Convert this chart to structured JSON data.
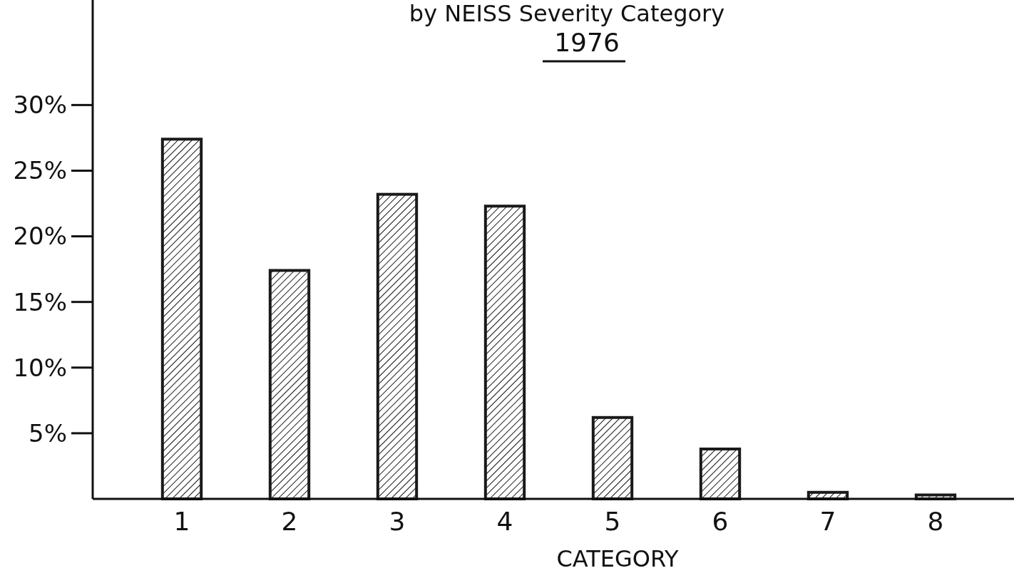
{
  "chart_data": {
    "type": "bar",
    "title": "by NEISS Severity Category",
    "subtitle": "1976",
    "xlabel": "CATEGORY",
    "categories": [
      "1",
      "2",
      "3",
      "4",
      "5",
      "6",
      "7",
      "8"
    ],
    "values": [
      27.4,
      17.4,
      23.2,
      22.3,
      6.2,
      3.8,
      0.5,
      0.3
    ],
    "color": "#1a1a1a",
    "ylim": [
      0,
      38
    ],
    "yticks": [
      {
        "value": 5,
        "label": "5%"
      },
      {
        "value": 10,
        "label": "10%"
      },
      {
        "value": 15,
        "label": "15%"
      },
      {
        "value": 20,
        "label": "20%"
      },
      {
        "value": 25,
        "label": "25%"
      },
      {
        "value": 30,
        "label": "30%"
      }
    ],
    "grid": false
  }
}
